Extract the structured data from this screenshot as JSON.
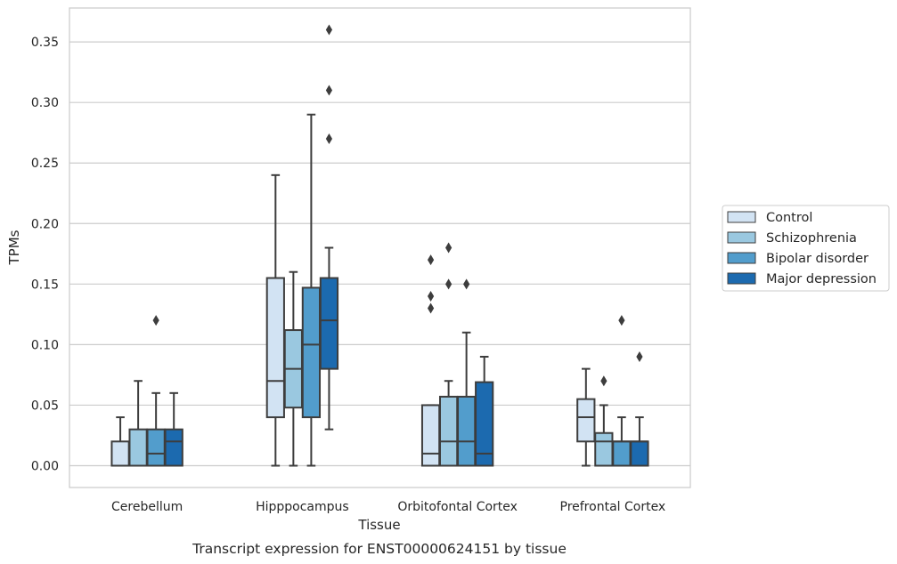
{
  "chart_data": {
    "type": "box",
    "caption": "Transcript expression for ENST00000624151 by tissue",
    "xlabel": "Tissue",
    "ylabel": "TPMs",
    "ylim": [
      -0.018,
      0.378
    ],
    "yticks": [
      0.0,
      0.05,
      0.1,
      0.15,
      0.2,
      0.25,
      0.3,
      0.35
    ],
    "ytick_labels": [
      "0.00",
      "0.05",
      "0.10",
      "0.15",
      "0.20",
      "0.25",
      "0.30",
      "0.35"
    ],
    "grid": "horizontal",
    "legend_position": "right",
    "categories": [
      "Cerebellum",
      "Hipppocampus",
      "Orbitofontal Cortex",
      "Prefrontal Cortex"
    ],
    "series": [
      {
        "name": "Control",
        "color": "#d2e3f3",
        "boxes": [
          {
            "whislo": 0.0,
            "q1": 0.0,
            "med": 0.0,
            "q3": 0.02,
            "whishi": 0.04,
            "fliers": []
          },
          {
            "whislo": 0.0,
            "q1": 0.04,
            "med": 0.07,
            "q3": 0.155,
            "whishi": 0.24,
            "fliers": []
          },
          {
            "whislo": 0.0,
            "q1": 0.0,
            "med": 0.01,
            "q3": 0.05,
            "whishi": 0.05,
            "fliers": [
              0.13,
              0.14,
              0.17
            ]
          },
          {
            "whislo": 0.0,
            "q1": 0.02,
            "med": 0.04,
            "q3": 0.055,
            "whishi": 0.08,
            "fliers": []
          }
        ]
      },
      {
        "name": "Schizophrenia",
        "color": "#9ac8e0",
        "boxes": [
          {
            "whislo": 0.0,
            "q1": 0.0,
            "med": 0.0,
            "q3": 0.03,
            "whishi": 0.07,
            "fliers": []
          },
          {
            "whislo": 0.0,
            "q1": 0.048,
            "med": 0.08,
            "q3": 0.112,
            "whishi": 0.16,
            "fliers": []
          },
          {
            "whislo": 0.0,
            "q1": 0.0,
            "med": 0.02,
            "q3": 0.057,
            "whishi": 0.07,
            "fliers": [
              0.15,
              0.18
            ]
          },
          {
            "whislo": 0.0,
            "q1": 0.0,
            "med": 0.02,
            "q3": 0.027,
            "whishi": 0.05,
            "fliers": [
              0.07
            ]
          }
        ]
      },
      {
        "name": "Bipolar disorder",
        "color": "#529dcc",
        "boxes": [
          {
            "whislo": 0.0,
            "q1": 0.0,
            "med": 0.01,
            "q3": 0.03,
            "whishi": 0.06,
            "fliers": [
              0.12
            ]
          },
          {
            "whislo": 0.0,
            "q1": 0.04,
            "med": 0.1,
            "q3": 0.147,
            "whishi": 0.29,
            "fliers": []
          },
          {
            "whislo": 0.0,
            "q1": 0.0,
            "med": 0.02,
            "q3": 0.057,
            "whishi": 0.11,
            "fliers": [
              0.15
            ]
          },
          {
            "whislo": 0.0,
            "q1": 0.0,
            "med": 0.02,
            "q3": 0.02,
            "whishi": 0.04,
            "fliers": [
              0.12
            ]
          }
        ]
      },
      {
        "name": "Major depression",
        "color": "#1c6aaf",
        "boxes": [
          {
            "whislo": 0.0,
            "q1": 0.0,
            "med": 0.02,
            "q3": 0.03,
            "whishi": 0.06,
            "fliers": []
          },
          {
            "whislo": 0.03,
            "q1": 0.08,
            "med": 0.12,
            "q3": 0.155,
            "whishi": 0.18,
            "fliers": [
              0.27,
              0.31,
              0.36
            ]
          },
          {
            "whislo": 0.0,
            "q1": 0.0,
            "med": 0.01,
            "q3": 0.069,
            "whishi": 0.09,
            "fliers": []
          },
          {
            "whislo": 0.0,
            "q1": 0.0,
            "med": 0.02,
            "q3": 0.02,
            "whishi": 0.04,
            "fliers": [
              0.09
            ]
          }
        ]
      }
    ]
  }
}
